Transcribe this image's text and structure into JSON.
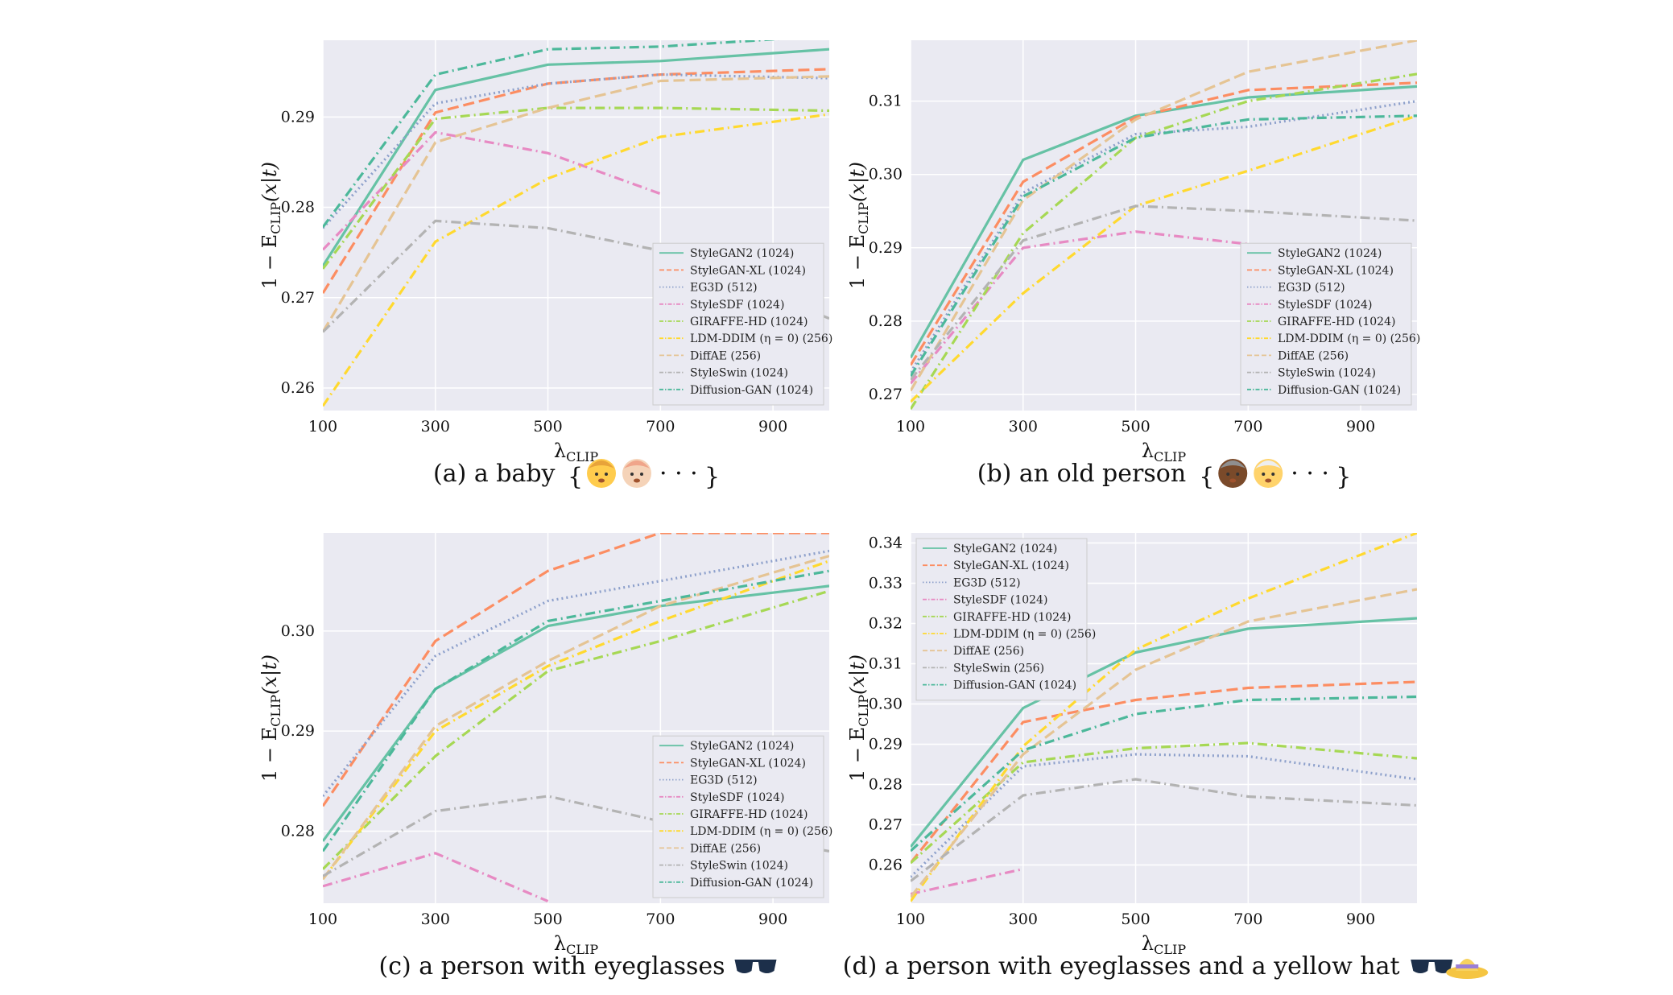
{
  "series_styles": [
    {
      "name": "StyleGAN2",
      "color": "#66c2a5",
      "dash": "solid"
    },
    {
      "name": "StyleGAN-XL",
      "color": "#fc8d62",
      "dash": "dashed"
    },
    {
      "name": "EG3D",
      "color": "#8da0cb",
      "dash": "dotted"
    },
    {
      "name": "StyleSDF",
      "color": "#e78ac3",
      "dash": "dashdot"
    },
    {
      "name": "GIRAFFE-HD",
      "color": "#a6d854",
      "dash": "dashdot"
    },
    {
      "name": "LDM-DDIM",
      "color": "#ffd92f",
      "dash": "dashdot"
    },
    {
      "name": "DiffAE",
      "color": "#e5c494",
      "dash": "dashed"
    },
    {
      "name": "StyleSwin",
      "color": "#b3b3b3",
      "dash": "dashdot"
    },
    {
      "name": "Diffusion-GAN",
      "color": "#4cb89a",
      "dash": "dashdot"
    }
  ],
  "colors": {
    "plot_background": "#eaeaf2",
    "grid": "#ffffff"
  },
  "chart_data": [
    {
      "type": "line",
      "caption_label": "(a)",
      "caption": "a baby",
      "caption_suffix": "· · ·",
      "caption_emoji": [
        "baby",
        "baby"
      ],
      "xlabel": "λ",
      "xlabel_sub": "CLIP",
      "ylabel": "1 − E",
      "ylabel_sub": "CLIP",
      "ylabel_tail": "(x|t)",
      "xlim": [
        100,
        1000
      ],
      "ylim": [
        0.2575,
        0.2985
      ],
      "xticks": [
        "100",
        "300",
        "500",
        "700",
        "900"
      ],
      "yticks": [
        "0.26",
        "0.27",
        "0.28",
        "0.29"
      ],
      "grid": true,
      "legend_position": "lower-right",
      "x": [
        100,
        300,
        500,
        700,
        1000
      ],
      "series": [
        {
          "name": "StyleGAN2 (1024)",
          "values": [
            0.2735,
            0.293,
            0.2958,
            0.2962,
            0.2975
          ]
        },
        {
          "name": "StyleGAN-XL (1024)",
          "values": [
            0.2705,
            0.2905,
            0.2937,
            0.2947,
            0.2953
          ]
        },
        {
          "name": "EG3D (512)",
          "values": [
            0.2777,
            0.2915,
            0.2937,
            0.2947,
            0.2943
          ]
        },
        {
          "name": "StyleSDF (1024)",
          "values": [
            0.2753,
            0.2883,
            0.286,
            0.2815,
            null
          ]
        },
        {
          "name": "GIRAFFE-HD (1024)",
          "values": [
            0.2732,
            0.2898,
            0.291,
            0.291,
            0.2907
          ]
        },
        {
          "name": "LDM-DDIM (η = 0) (256)",
          "values": [
            0.258,
            0.2762,
            0.2832,
            0.2878,
            0.2903
          ]
        },
        {
          "name": "DiffAE (256)",
          "values": [
            0.2662,
            0.2872,
            0.291,
            0.294,
            0.2945
          ]
        },
        {
          "name": "StyleSwin (1024)",
          "values": [
            0.2662,
            0.2785,
            0.2777,
            0.2752,
            0.2677
          ]
        },
        {
          "name": "Diffusion-GAN (1024)",
          "values": [
            0.2778,
            0.2947,
            0.2975,
            0.2978,
            0.299
          ]
        }
      ]
    },
    {
      "type": "line",
      "caption_label": "(b)",
      "caption": "an old person",
      "caption_suffix": "· · ·",
      "caption_emoji": [
        "older-woman",
        "older-man"
      ],
      "xlabel": "λ",
      "xlabel_sub": "CLIP",
      "ylabel": "1 − E",
      "ylabel_sub": "CLIP",
      "ylabel_tail": "(x|t)",
      "xlim": [
        100,
        1000
      ],
      "ylim": [
        0.2678,
        0.3183
      ],
      "xticks": [
        "100",
        "300",
        "500",
        "700",
        "900"
      ],
      "yticks": [
        "0.27",
        "0.28",
        "0.29",
        "0.30",
        "0.31"
      ],
      "grid": true,
      "legend_position": "lower-right",
      "x": [
        100,
        300,
        500,
        700,
        1000
      ],
      "series": [
        {
          "name": "StyleGAN2 (1024)",
          "values": [
            0.275,
            0.302,
            0.308,
            0.3105,
            0.312
          ]
        },
        {
          "name": "StyleGAN-XL (1024)",
          "values": [
            0.274,
            0.299,
            0.3078,
            0.3115,
            0.3125
          ]
        },
        {
          "name": "EG3D (512)",
          "values": [
            0.273,
            0.2975,
            0.3055,
            0.3065,
            0.31
          ]
        },
        {
          "name": "StyleSDF (1024)",
          "values": [
            0.2715,
            0.29,
            0.2922,
            0.2905,
            null
          ]
        },
        {
          "name": "GIRAFFE-HD (1024)",
          "values": [
            0.268,
            0.292,
            0.305,
            0.31,
            0.3137
          ]
        },
        {
          "name": "LDM-DDIM (η = 0) (256)",
          "values": [
            0.269,
            0.2838,
            0.2957,
            0.3005,
            0.308
          ]
        },
        {
          "name": "DiffAE (256)",
          "values": [
            0.2705,
            0.2965,
            0.3075,
            0.314,
            0.3183
          ]
        },
        {
          "name": "StyleSwin (1024)",
          "values": [
            0.272,
            0.291,
            0.2957,
            0.295,
            0.2937
          ]
        },
        {
          "name": "Diffusion-GAN (1024)",
          "values": [
            0.2725,
            0.297,
            0.305,
            0.3075,
            0.308
          ]
        }
      ]
    },
    {
      "type": "line",
      "caption_label": "(c)",
      "caption": "a person with eyeglasses",
      "caption_suffix": "",
      "caption_emoji": [
        "sunglasses"
      ],
      "xlabel": "λ",
      "xlabel_sub": "CLIP",
      "ylabel": "1 − E",
      "ylabel_sub": "CLIP",
      "ylabel_tail": "(x|t)",
      "xlim": [
        100,
        1000
      ],
      "ylim": [
        0.2728,
        0.3098
      ],
      "xticks": [
        "100",
        "300",
        "500",
        "700",
        "900"
      ],
      "yticks": [
        "0.28",
        "0.29",
        "0.30"
      ],
      "grid": true,
      "legend_position": "lower-right",
      "x": [
        100,
        300,
        500,
        700,
        1000
      ],
      "series": [
        {
          "name": "StyleGAN2 (1024)",
          "values": [
            0.279,
            0.2942,
            0.3005,
            0.3025,
            0.3045
          ]
        },
        {
          "name": "StyleGAN-XL (1024)",
          "values": [
            0.2825,
            0.299,
            0.306,
            0.3098,
            0.3098
          ]
        },
        {
          "name": "EG3D (512)",
          "values": [
            0.2835,
            0.2975,
            0.303,
            0.305,
            0.308
          ]
        },
        {
          "name": "StyleSDF (1024)",
          "values": [
            0.2745,
            0.2778,
            0.273,
            null,
            null
          ]
        },
        {
          "name": "GIRAFFE-HD (1024)",
          "values": [
            0.2762,
            0.2875,
            0.296,
            0.299,
            0.304
          ]
        },
        {
          "name": "LDM-DDIM (η = 0) (256)",
          "values": [
            0.2752,
            0.29,
            0.2965,
            0.301,
            0.307
          ]
        },
        {
          "name": "DiffAE (256)",
          "values": [
            0.2752,
            0.2905,
            0.297,
            0.3025,
            0.3075
          ]
        },
        {
          "name": "StyleSwin (1024)",
          "values": [
            0.2755,
            0.282,
            0.2835,
            0.281,
            0.278
          ]
        },
        {
          "name": "Diffusion-GAN (1024)",
          "values": [
            0.278,
            0.2942,
            0.301,
            0.303,
            0.306
          ]
        }
      ]
    },
    {
      "type": "line",
      "caption_label": "(d)",
      "caption": "a person with eyeglasses and a yellow hat",
      "caption_suffix": "",
      "caption_emoji": [
        "sunglasses",
        "hat"
      ],
      "xlabel": "λ",
      "xlabel_sub": "CLIP",
      "ylabel": "1 − E",
      "ylabel_sub": "CLIP",
      "ylabel_tail": "(x|t)",
      "xlim": [
        100,
        1000
      ],
      "ylim": [
        0.2505,
        0.3425
      ],
      "xticks": [
        "100",
        "300",
        "500",
        "700",
        "900"
      ],
      "yticks": [
        "0.26",
        "0.27",
        "0.28",
        "0.29",
        "0.30",
        "0.31",
        "0.32",
        "0.33",
        "0.34"
      ],
      "grid": true,
      "legend_position": "upper-left",
      "x": [
        100,
        300,
        500,
        700,
        1000
      ],
      "series": [
        {
          "name": "StyleGAN2 (1024)",
          "values": [
            0.2645,
            0.299,
            0.3128,
            0.3187,
            0.3213
          ]
        },
        {
          "name": "StyleGAN-XL (1024)",
          "values": [
            0.2605,
            0.2955,
            0.301,
            0.304,
            0.3055
          ]
        },
        {
          "name": "EG3D (512)",
          "values": [
            0.257,
            0.2845,
            0.2875,
            0.287,
            0.2813
          ]
        },
        {
          "name": "StyleSDF (1024)",
          "values": [
            0.2528,
            0.259,
            null,
            null,
            null
          ]
        },
        {
          "name": "GIRAFFE-HD (1024)",
          "values": [
            0.2605,
            0.2855,
            0.289,
            0.2903,
            0.2865
          ]
        },
        {
          "name": "LDM-DDIM (η = 0) (256)",
          "values": [
            0.251,
            0.2895,
            0.3135,
            0.3262,
            0.3425
          ]
        },
        {
          "name": "DiffAE (256)",
          "values": [
            0.252,
            0.2875,
            0.3085,
            0.3205,
            0.3285
          ]
        },
        {
          "name": "StyleSwin (256)",
          "values": [
            0.256,
            0.2773,
            0.2813,
            0.277,
            0.2748
          ]
        },
        {
          "name": "Diffusion-GAN (1024)",
          "values": [
            0.2635,
            0.2885,
            0.2975,
            0.301,
            0.3018
          ]
        }
      ]
    }
  ]
}
